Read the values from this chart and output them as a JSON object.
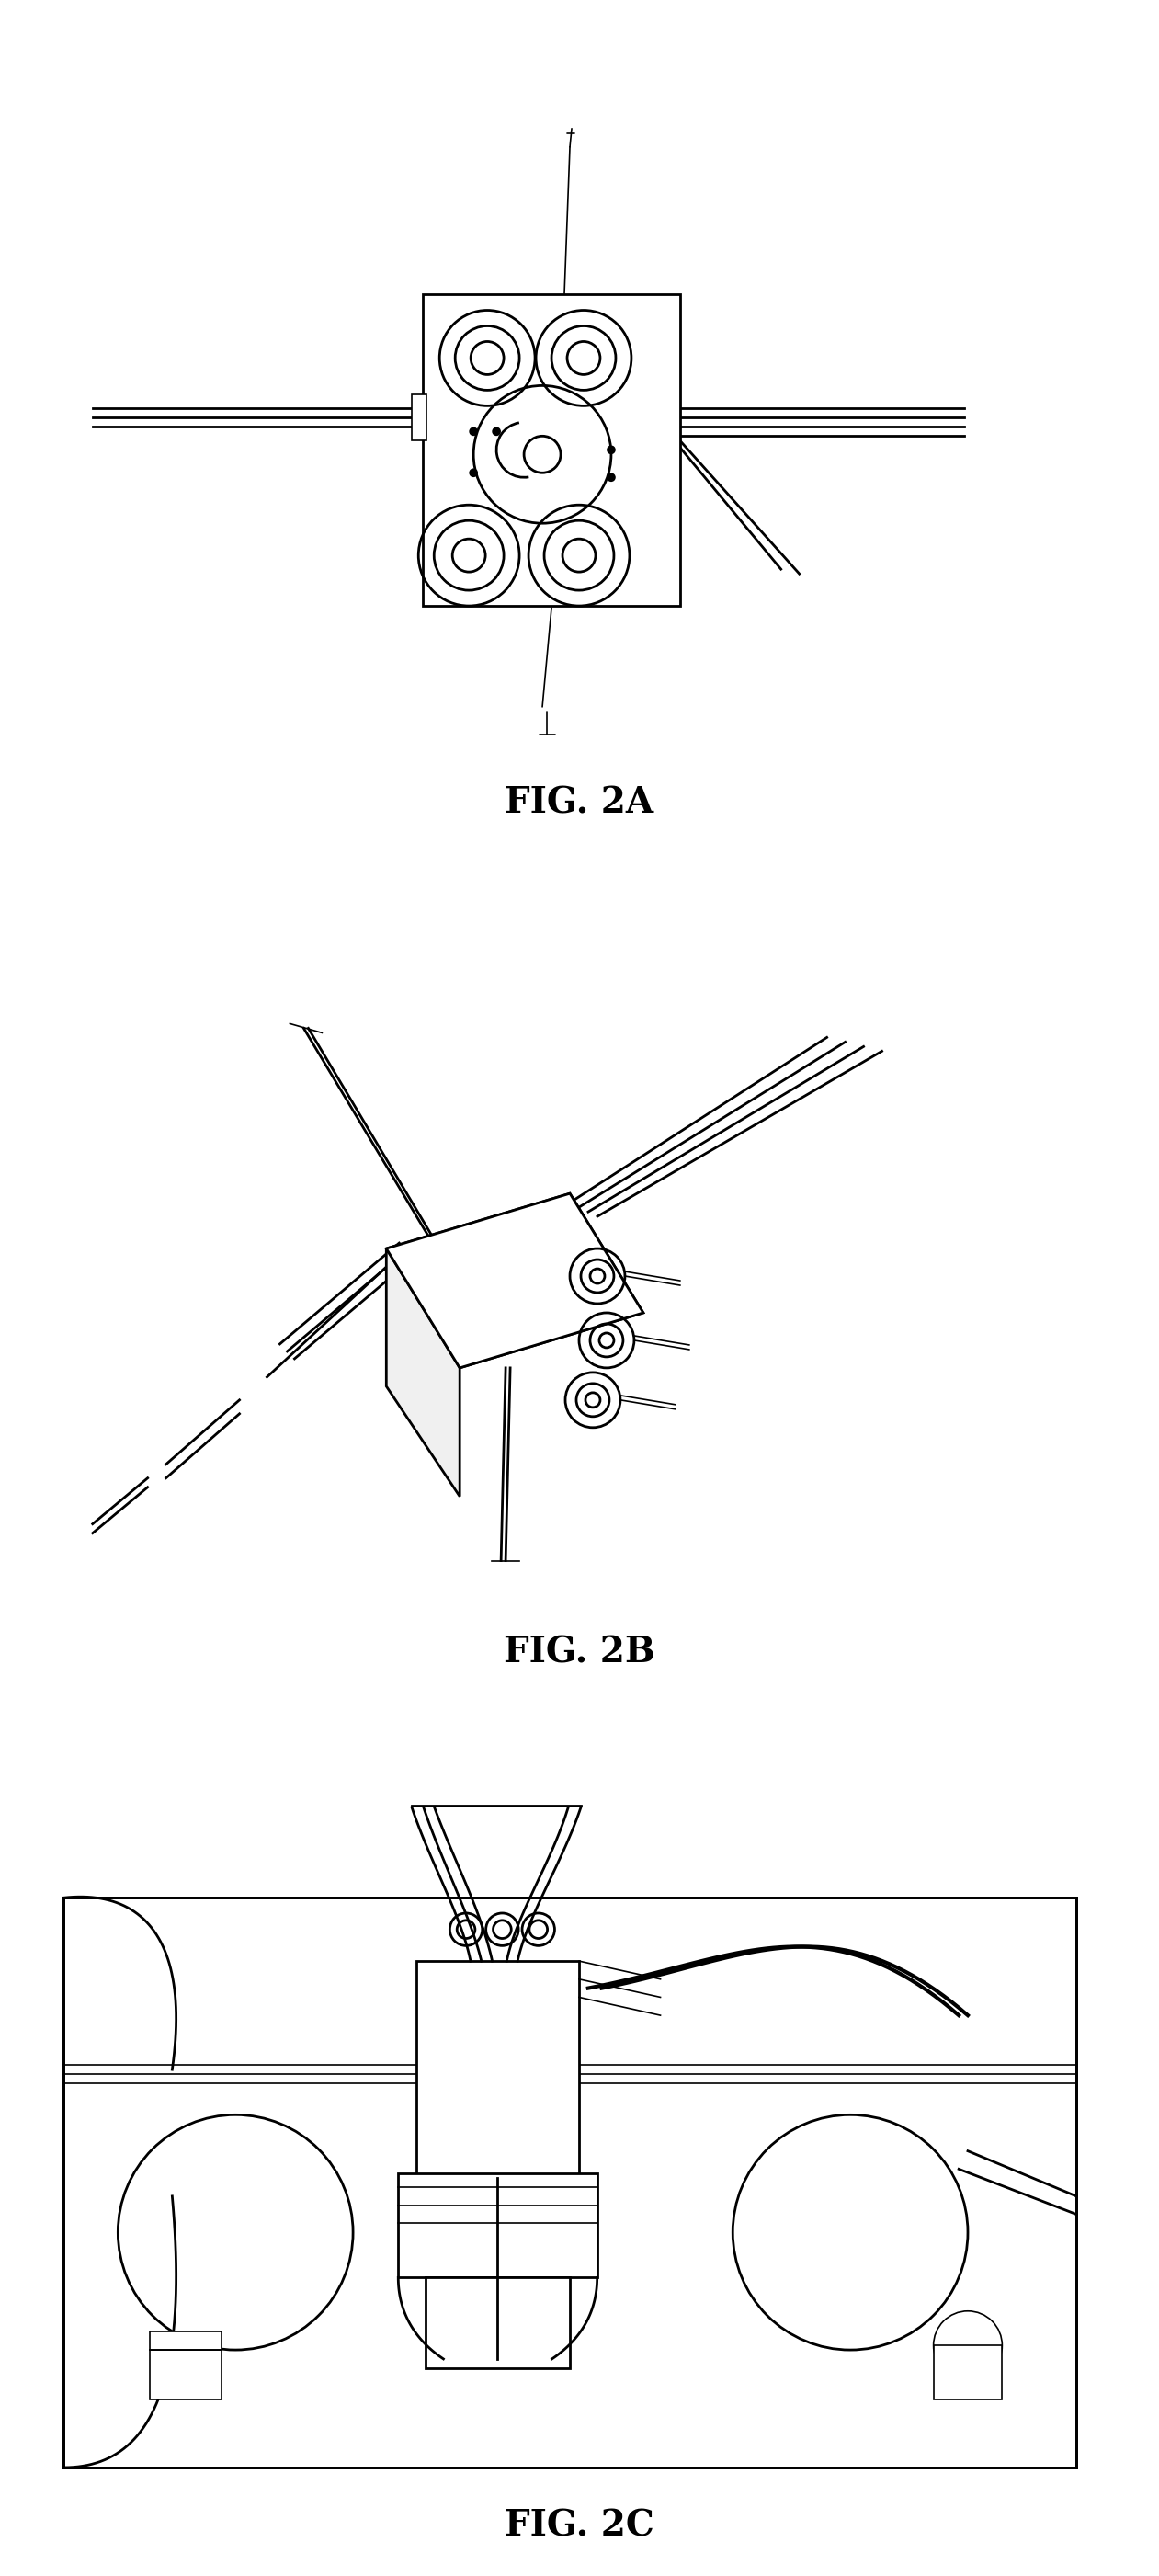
{
  "bg_color": "#ffffff",
  "line_color": "#000000",
  "fig_labels": [
    "FIG. 2A",
    "FIG. 2B",
    "FIG. 2C"
  ],
  "fig_label_fontsize": 28,
  "fig_label_family": "serif"
}
